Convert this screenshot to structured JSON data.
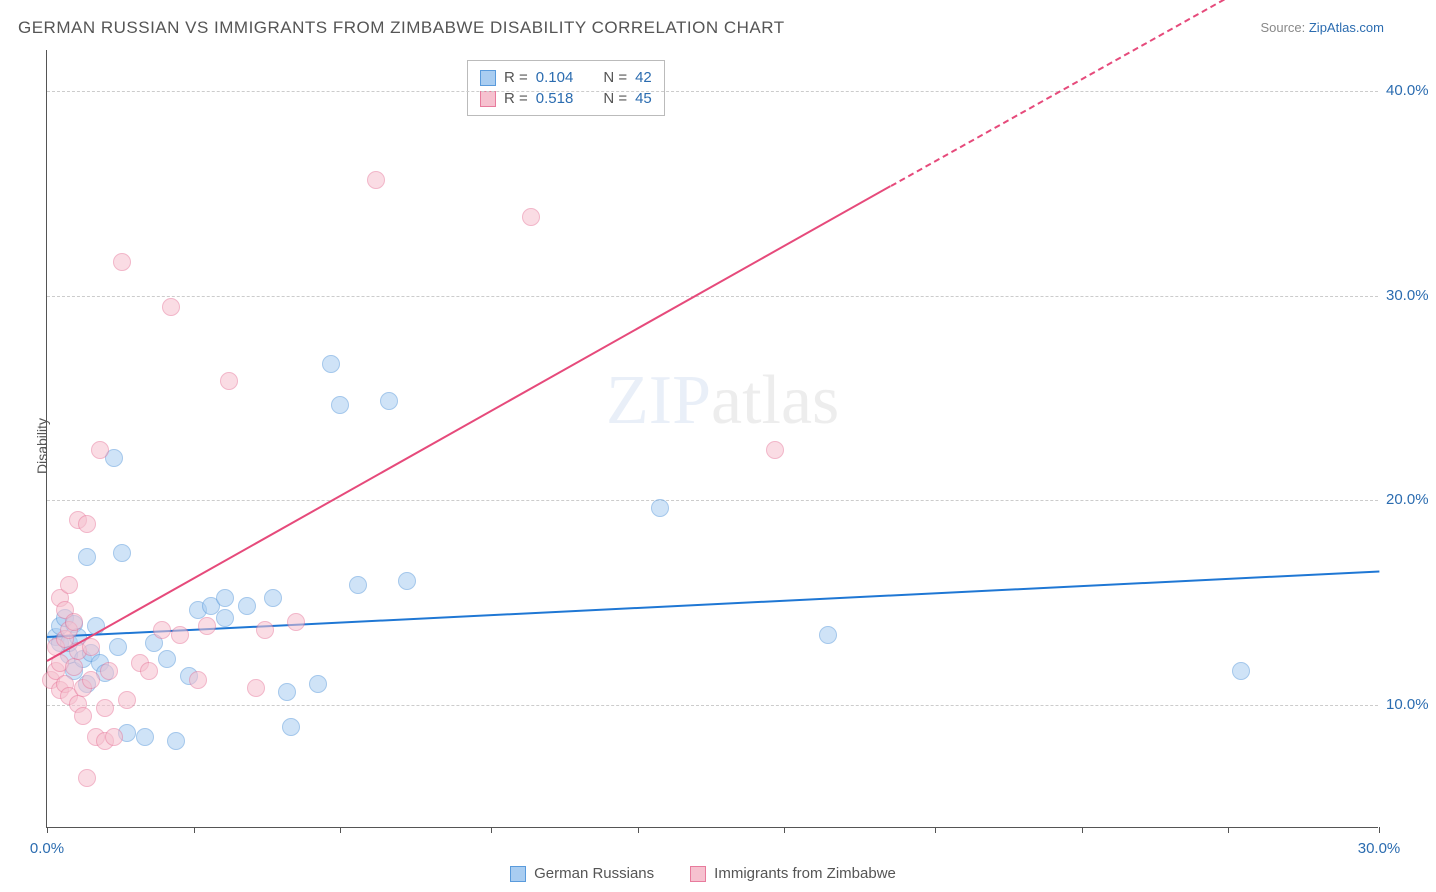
{
  "title": "GERMAN RUSSIAN VS IMMIGRANTS FROM ZIMBABWE DISABILITY CORRELATION CHART",
  "source": {
    "prefix": "Source: ",
    "name": "ZipAtlas.com"
  },
  "y_axis_label": "Disability",
  "watermark": {
    "part1": "ZIP",
    "part2": "atlas"
  },
  "chart": {
    "type": "scatter",
    "xlim": [
      0,
      30
    ],
    "ylim": [
      4,
      42
    ],
    "x_ticks": [
      0,
      3.3,
      6.6,
      10,
      13.3,
      16.6,
      20,
      23.3,
      26.6,
      30
    ],
    "x_tick_labels": {
      "0": "0.0%",
      "30": "30.0%"
    },
    "y_gridlines": [
      10,
      20,
      30,
      40
    ],
    "y_tick_labels": {
      "10": "10.0%",
      "20": "20.0%",
      "30": "30.0%",
      "40": "40.0%"
    },
    "grid_color": "#cccccc",
    "background_color": "#ffffff",
    "axis_color": "#555555",
    "marker_radius": 9,
    "marker_opacity": 0.55
  },
  "series": [
    {
      "key": "german_russians",
      "label": "German Russians",
      "fill": "#a9cdf1",
      "stroke": "#5a9bdc",
      "trend_color": "#1f77d4",
      "r_label": "R =",
      "r_value": "0.104",
      "n_label": "N =",
      "n_value": "42",
      "trend": {
        "x1": 0,
        "y1": 13.4,
        "x2": 30,
        "y2": 16.6
      },
      "points": [
        [
          0.2,
          13.3
        ],
        [
          0.3,
          13.8
        ],
        [
          0.3,
          13.0
        ],
        [
          0.4,
          14.2
        ],
        [
          0.5,
          12.4
        ],
        [
          0.5,
          13.0
        ],
        [
          0.6,
          11.6
        ],
        [
          0.6,
          13.9
        ],
        [
          0.7,
          13.3
        ],
        [
          0.8,
          12.2
        ],
        [
          0.9,
          11.0
        ],
        [
          0.9,
          17.2
        ],
        [
          1.0,
          12.5
        ],
        [
          1.1,
          13.8
        ],
        [
          1.2,
          12.0
        ],
        [
          1.3,
          11.5
        ],
        [
          1.5,
          22.0
        ],
        [
          1.6,
          12.8
        ],
        [
          1.7,
          17.4
        ],
        [
          1.8,
          8.6
        ],
        [
          2.2,
          8.4
        ],
        [
          2.4,
          13.0
        ],
        [
          2.7,
          12.2
        ],
        [
          2.9,
          8.2
        ],
        [
          3.2,
          11.4
        ],
        [
          3.4,
          14.6
        ],
        [
          3.7,
          14.8
        ],
        [
          4.0,
          15.2
        ],
        [
          4.0,
          14.2
        ],
        [
          4.5,
          14.8
        ],
        [
          5.1,
          15.2
        ],
        [
          5.4,
          10.6
        ],
        [
          5.5,
          8.9
        ],
        [
          6.1,
          11.0
        ],
        [
          6.4,
          26.6
        ],
        [
          6.6,
          24.6
        ],
        [
          7.0,
          15.8
        ],
        [
          7.7,
          24.8
        ],
        [
          8.1,
          16.0
        ],
        [
          13.8,
          19.6
        ],
        [
          17.6,
          13.4
        ],
        [
          26.9,
          11.6
        ]
      ]
    },
    {
      "key": "immigrants_zimbabwe",
      "label": "Immigrants from Zimbabwe",
      "fill": "#f6c1cf",
      "stroke": "#e87b9d",
      "trend_color": "#e64a7b",
      "r_label": "R =",
      "r_value": "0.518",
      "n_label": "N =",
      "n_value": "45",
      "trend": {
        "x1": 0,
        "y1": 12.2,
        "x2": 19.0,
        "y2": 35.4
      },
      "trend_dashed": {
        "x1": 19.0,
        "y1": 35.4,
        "x2": 26.5,
        "y2": 44.5
      },
      "points": [
        [
          0.1,
          11.2
        ],
        [
          0.2,
          11.6
        ],
        [
          0.2,
          12.8
        ],
        [
          0.3,
          15.2
        ],
        [
          0.3,
          12.0
        ],
        [
          0.3,
          10.7
        ],
        [
          0.4,
          11.0
        ],
        [
          0.4,
          14.6
        ],
        [
          0.4,
          13.2
        ],
        [
          0.5,
          10.4
        ],
        [
          0.5,
          13.6
        ],
        [
          0.5,
          15.8
        ],
        [
          0.6,
          11.8
        ],
        [
          0.6,
          14.0
        ],
        [
          0.7,
          10.0
        ],
        [
          0.7,
          12.6
        ],
        [
          0.7,
          19.0
        ],
        [
          0.8,
          9.4
        ],
        [
          0.8,
          10.8
        ],
        [
          0.9,
          6.4
        ],
        [
          0.9,
          18.8
        ],
        [
          1.0,
          11.2
        ],
        [
          1.0,
          12.8
        ],
        [
          1.1,
          8.4
        ],
        [
          1.2,
          22.4
        ],
        [
          1.3,
          9.8
        ],
        [
          1.3,
          8.2
        ],
        [
          1.4,
          11.6
        ],
        [
          1.5,
          8.4
        ],
        [
          1.7,
          31.6
        ],
        [
          1.8,
          10.2
        ],
        [
          2.1,
          12.0
        ],
        [
          2.3,
          11.6
        ],
        [
          2.6,
          13.6
        ],
        [
          2.8,
          29.4
        ],
        [
          3.0,
          13.4
        ],
        [
          3.4,
          11.2
        ],
        [
          3.6,
          13.8
        ],
        [
          4.1,
          25.8
        ],
        [
          4.7,
          10.8
        ],
        [
          4.9,
          13.6
        ],
        [
          5.6,
          14.0
        ],
        [
          7.4,
          35.6
        ],
        [
          10.9,
          33.8
        ],
        [
          16.4,
          22.4
        ]
      ]
    }
  ]
}
